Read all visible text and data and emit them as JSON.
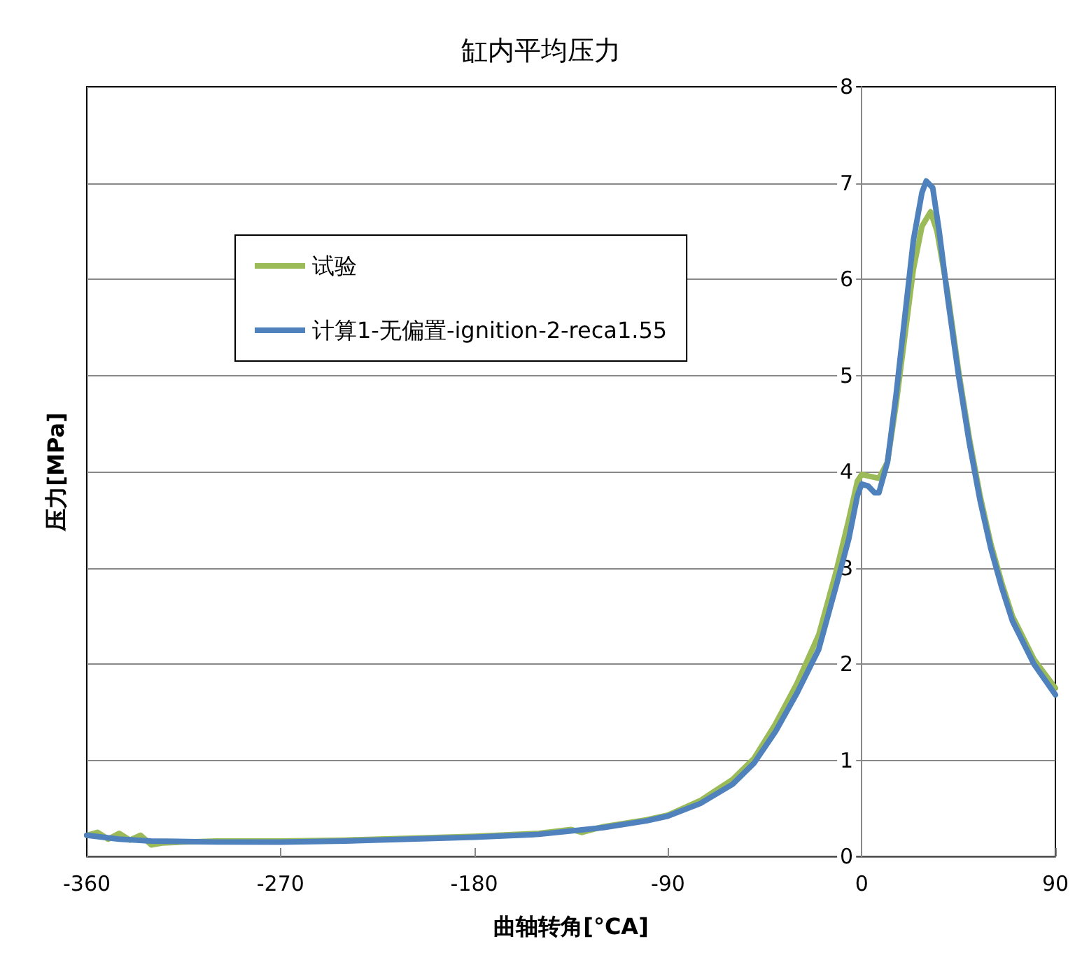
{
  "chart_data": {
    "type": "line",
    "title": "缸内平均压力",
    "xlabel": "曲轴转角[°CA]",
    "ylabel": "压力[MPa]",
    "xlim": [
      -360,
      90
    ],
    "xticks": [
      -360,
      -270,
      -180,
      -90,
      0,
      90
    ],
    "ylim": [
      0,
      8
    ],
    "yticks": [
      0,
      1,
      2,
      3,
      4,
      5,
      6,
      7,
      8
    ],
    "grid": "y",
    "legend": "top left",
    "marker": "none",
    "line_style": "solid",
    "series": [
      {
        "name": "试验",
        "color": "#9bbb59",
        "x": [
          -360,
          -355,
          -350,
          -345,
          -340,
          -335,
          -330,
          -325,
          -315,
          -300,
          -270,
          -240,
          -210,
          -180,
          -150,
          -135,
          -130,
          -120,
          -100,
          -90,
          -75,
          -60,
          -50,
          -40,
          -30,
          -20,
          -12,
          -6,
          -2,
          0,
          4,
          8,
          12,
          16,
          20,
          24,
          28,
          32,
          35,
          40,
          45,
          50,
          55,
          60,
          65,
          70,
          80,
          90
        ],
        "values": [
          0.22,
          0.25,
          0.18,
          0.24,
          0.17,
          0.22,
          0.12,
          0.14,
          0.15,
          0.16,
          0.16,
          0.17,
          0.19,
          0.21,
          0.24,
          0.28,
          0.25,
          0.31,
          0.38,
          0.43,
          0.58,
          0.8,
          1.02,
          1.38,
          1.8,
          2.3,
          2.95,
          3.5,
          3.9,
          3.97,
          3.95,
          3.93,
          4.1,
          4.7,
          5.4,
          6.1,
          6.55,
          6.7,
          6.5,
          5.85,
          5.05,
          4.35,
          3.75,
          3.25,
          2.85,
          2.5,
          2.05,
          1.75
        ]
      },
      {
        "name": "计算1-无偏置-ignition-2-reca1.55",
        "color": "#4f81bd",
        "x": [
          -360,
          -345,
          -330,
          -300,
          -270,
          -240,
          -210,
          -180,
          -150,
          -120,
          -100,
          -90,
          -75,
          -60,
          -50,
          -40,
          -30,
          -20,
          -12,
          -6,
          -2,
          0,
          3,
          6,
          8,
          12,
          16,
          20,
          24,
          28,
          30,
          33,
          36,
          40,
          45,
          50,
          55,
          60,
          65,
          70,
          80,
          90
        ],
        "values": [
          0.22,
          0.18,
          0.16,
          0.15,
          0.15,
          0.16,
          0.18,
          0.2,
          0.23,
          0.3,
          0.37,
          0.42,
          0.55,
          0.75,
          0.97,
          1.3,
          1.7,
          2.15,
          2.8,
          3.3,
          3.75,
          3.87,
          3.85,
          3.78,
          3.78,
          4.1,
          4.8,
          5.6,
          6.4,
          6.9,
          7.02,
          6.95,
          6.5,
          5.8,
          5.0,
          4.3,
          3.7,
          3.2,
          2.8,
          2.45,
          2.0,
          1.68
        ]
      }
    ]
  }
}
